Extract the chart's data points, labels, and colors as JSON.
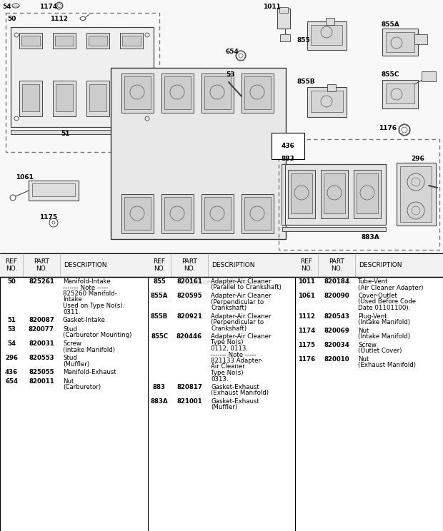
{
  "bg_color": "#ffffff",
  "watermark": "eReplacementParts.com",
  "col1_entries": [
    {
      "ref": "50",
      "part": "825261",
      "desc": [
        "Manifold-Intake",
        "------- Note -----",
        "825260 Manifold-",
        "Intake",
        "Used on Type No(s).",
        "0311."
      ]
    },
    {
      "ref": "51",
      "part": "820087",
      "desc": [
        "Gasket-Intake"
      ]
    },
    {
      "ref": "53",
      "part": "820077",
      "desc": [
        "Stud",
        "(Carburetor Mounting)"
      ]
    },
    {
      "ref": "54",
      "part": "820031",
      "desc": [
        "Screw",
        "(Intake Manifold)"
      ]
    },
    {
      "ref": "296",
      "part": "820553",
      "desc": [
        "Stud",
        "(Muffler)"
      ]
    },
    {
      "ref": "436",
      "part": "825055",
      "desc": [
        "Manifold-Exhaust"
      ]
    },
    {
      "ref": "654",
      "part": "820011",
      "desc": [
        "Nut",
        "(Carburetor)"
      ]
    }
  ],
  "col2_entries": [
    {
      "ref": "855",
      "part": "820161",
      "desc": [
        "Adapter-Air Cleaner",
        "(Parallel to Crankshaft)"
      ]
    },
    {
      "ref": "855A",
      "part": "820595",
      "desc": [
        "Adapter-Air Cleaner",
        "(Perpendicular to",
        "Crankshaft)"
      ]
    },
    {
      "ref": "855B",
      "part": "820921",
      "desc": [
        "Adapter-Air Cleaner",
        "(Perpendicular to",
        "Crankshaft)"
      ]
    },
    {
      "ref": "855C",
      "part": "820446",
      "desc": [
        "Adapter-Air Cleaner",
        "Type No(s)",
        "0112, 0113.",
        "------- Note -----",
        "821133 Adapter-",
        "Air Cleaner",
        "Type No(s)",
        "0313."
      ]
    },
    {
      "ref": "883",
      "part": "820817",
      "desc": [
        "Gasket-Exhaust",
        "(Exhaust Manifold)"
      ]
    },
    {
      "ref": "883A",
      "part": "821001",
      "desc": [
        "Gasket-Exhaust",
        "(Muffler)"
      ]
    }
  ],
  "col3_entries": [
    {
      "ref": "1011",
      "part": "820184",
      "desc": [
        "Tube-Vent",
        "(Air Cleaner Adapter)"
      ]
    },
    {
      "ref": "1061",
      "part": "820090",
      "desc": [
        "Cover-Outlet",
        "(Used Before Code",
        "Date 01101100)."
      ]
    },
    {
      "ref": "1112",
      "part": "820543",
      "desc": [
        "Plug-Vent",
        "(Intake Manifold)"
      ]
    },
    {
      "ref": "1174",
      "part": "820069",
      "desc": [
        "Nut",
        "(Intake Manifold)"
      ]
    },
    {
      "ref": "1175",
      "part": "820034",
      "desc": [
        "Screw",
        "(Outlet Cover)"
      ]
    },
    {
      "ref": "1176",
      "part": "820010",
      "desc": [
        "Nut",
        "(Exhaust Manifold)"
      ]
    }
  ]
}
